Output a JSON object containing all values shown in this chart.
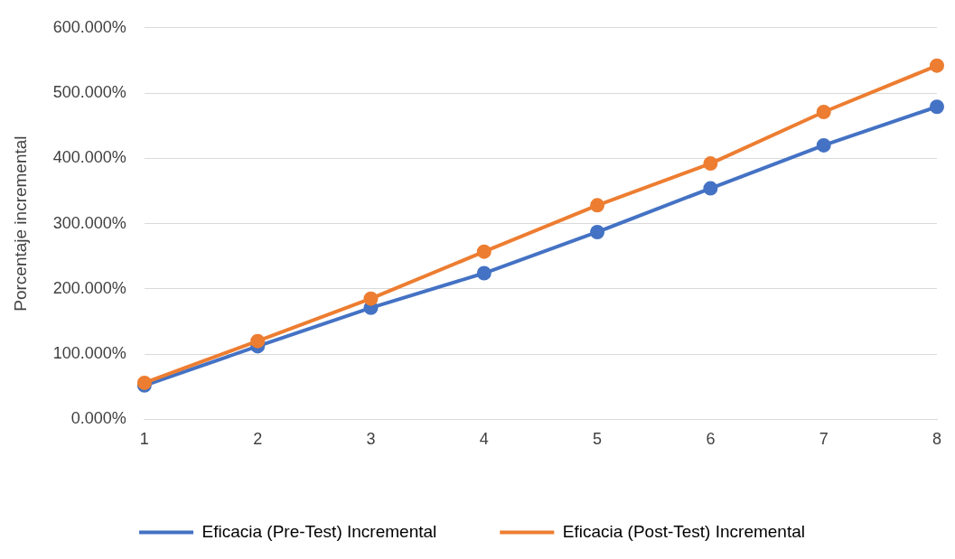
{
  "chart_data": {
    "type": "line",
    "ylabel": "Porcentaje incremental",
    "categories": [
      "1",
      "2",
      "3",
      "4",
      "5",
      "6",
      "7",
      "8"
    ],
    "series": [
      {
        "name": "Eficacia (Pre-Test) Incremental",
        "color": "#4472c4",
        "values": [
          52,
          112,
          171,
          224,
          287,
          354,
          420,
          479
        ]
      },
      {
        "name": "Eficacia (Post-Test) Incremental",
        "color": "#ed7d31",
        "values": [
          56,
          120,
          185,
          257,
          328,
          392,
          471,
          542
        ]
      }
    ],
    "ylim": [
      0,
      600
    ],
    "yticks": [
      {
        "value": 0,
        "label": "0.000%"
      },
      {
        "value": 100,
        "label": "100.000%"
      },
      {
        "value": 200,
        "label": "200.000%"
      },
      {
        "value": 300,
        "label": "300.000%"
      },
      {
        "value": 400,
        "label": "400.000%"
      },
      {
        "value": 500,
        "label": "500.000%"
      },
      {
        "value": 600,
        "label": "600.000%"
      }
    ],
    "grid": "y",
    "legend": "bottom",
    "marker": "circle",
    "line_style": "solid"
  }
}
